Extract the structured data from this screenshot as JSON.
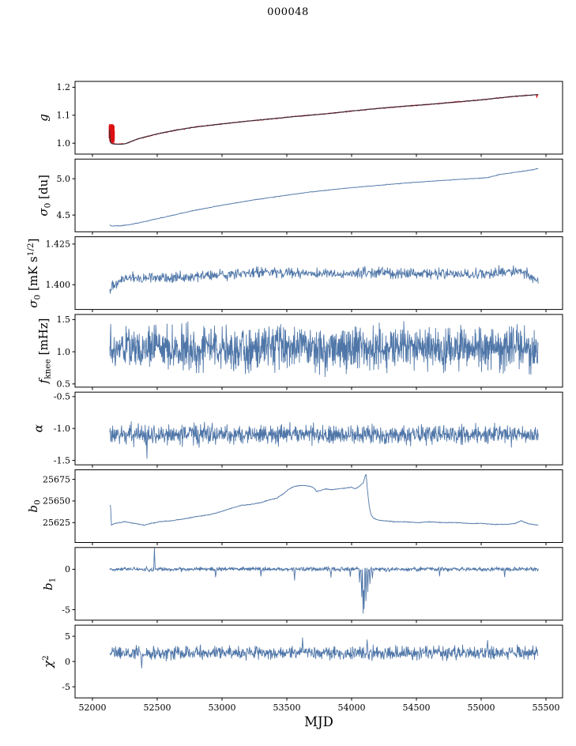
{
  "title": "000048",
  "chart_data": {
    "type": "line",
    "xlabel": "MJD",
    "xlim": [
      51866,
      55628
    ],
    "x_data_range": [
      52134,
      55440
    ],
    "x_ticks": {
      "values": [
        52000,
        52500,
        53000,
        53500,
        54000,
        54500,
        55000,
        55500
      ],
      "labels": [
        "52000",
        "52500",
        "53000",
        "53500",
        "54000",
        "54500",
        "55000",
        "55500"
      ]
    },
    "colors": {
      "blue": "#4f76a8",
      "red": "#dc1010",
      "fit": "#2b2b3d",
      "axis": "#000000"
    },
    "subplots": [
      {
        "name": "g",
        "ylabel_parts": [
          {
            "t": "g",
            "it": true
          }
        ],
        "ylim": [
          0.961,
          1.221
        ],
        "yticks": {
          "values": [
            1.0,
            1.1,
            1.2
          ],
          "labels": [
            "1.0",
            "1.1",
            "1.2"
          ]
        },
        "series": [
          {
            "kind": "noisy",
            "color": "red",
            "amp": 0.003,
            "n": 1300,
            "trend_ref": 1,
            "cluster": {
              "x0": 52128,
              "x1": 52170,
              "ymin": 1.0,
              "ymax": 1.068,
              "n": 150
            },
            "spikes": [
              [
                55430,
                1.163
              ]
            ]
          },
          {
            "kind": "smooth",
            "color": "fit",
            "points": [
              [
                52132,
                1.048
              ],
              [
                52140,
                1.005
              ],
              [
                52170,
                0.997
              ],
              [
                52250,
                0.998
              ],
              [
                52350,
                1.015
              ],
              [
                52500,
                1.033
              ],
              [
                52650,
                1.047
              ],
              [
                52800,
                1.058
              ],
              [
                53000,
                1.069
              ],
              [
                53200,
                1.079
              ],
              [
                53400,
                1.088
              ],
              [
                53600,
                1.097
              ],
              [
                53800,
                1.105
              ],
              [
                54000,
                1.115
              ],
              [
                54200,
                1.124
              ],
              [
                54400,
                1.132
              ],
              [
                54600,
                1.139
              ],
              [
                54800,
                1.147
              ],
              [
                55000,
                1.155
              ],
              [
                55200,
                1.165
              ],
              [
                55300,
                1.169
              ],
              [
                55440,
                1.174
              ]
            ]
          }
        ]
      },
      {
        "name": "sigma0-du",
        "ylabel_parts": [
          {
            "t": "σ",
            "it": true
          },
          {
            "t": "0",
            "sub": true
          },
          {
            "t": " [du]"
          }
        ],
        "ylim": [
          4.27,
          5.27
        ],
        "yticks": {
          "values": [
            4.5,
            5.0
          ],
          "labels": [
            "4.5",
            "5.0"
          ]
        },
        "series": [
          {
            "kind": "noisy",
            "color": "blue",
            "amp": 0.007,
            "n": 900,
            "trend": [
              [
                52134,
                4.365
              ],
              [
                52145,
                4.35
              ],
              [
                52200,
                4.352
              ],
              [
                52260,
                4.36
              ],
              [
                52350,
                4.39
              ],
              [
                52450,
                4.43
              ],
              [
                52550,
                4.47
              ],
              [
                52650,
                4.51
              ],
              [
                52750,
                4.55
              ],
              [
                52850,
                4.585
              ],
              [
                52950,
                4.62
              ],
              [
                53050,
                4.65
              ],
              [
                53150,
                4.68
              ],
              [
                53250,
                4.71
              ],
              [
                53350,
                4.735
              ],
              [
                53450,
                4.76
              ],
              [
                53550,
                4.785
              ],
              [
                53650,
                4.81
              ],
              [
                53750,
                4.83
              ],
              [
                53850,
                4.85
              ],
              [
                53950,
                4.868
              ],
              [
                54050,
                4.885
              ],
              [
                54150,
                4.9
              ],
              [
                54250,
                4.915
              ],
              [
                54350,
                4.93
              ],
              [
                54450,
                4.945
              ],
              [
                54550,
                4.958
              ],
              [
                54650,
                4.97
              ],
              [
                54750,
                4.982
              ],
              [
                54850,
                4.993
              ],
              [
                54950,
                5.003
              ],
              [
                55050,
                5.015
              ],
              [
                55150,
                5.06
              ],
              [
                55250,
                5.085
              ],
              [
                55350,
                5.11
              ],
              [
                55440,
                5.14
              ]
            ]
          }
        ]
      },
      {
        "name": "sigma0-mks",
        "ylabel_parts": [
          {
            "t": "σ",
            "it": true
          },
          {
            "t": "0",
            "sub": true
          },
          {
            "t": " [mK s"
          },
          {
            "t": "1/2",
            "sup": true
          },
          {
            "t": "]"
          }
        ],
        "ylim": [
          1.3848,
          1.4295
        ],
        "yticks": {
          "values": [
            1.4,
            1.425
          ],
          "labels": [
            "1.400",
            "1.425"
          ]
        },
        "series": [
          {
            "kind": "noisy",
            "color": "blue",
            "amp": 0.0048,
            "n": 950,
            "trend": [
              [
                52134,
                1.398
              ],
              [
                52250,
                1.404
              ],
              [
                52400,
                1.4045
              ],
              [
                52700,
                1.405
              ],
              [
                53000,
                1.406
              ],
              [
                53300,
                1.4075
              ],
              [
                53600,
                1.407
              ],
              [
                53900,
                1.4065
              ],
              [
                54200,
                1.4075
              ],
              [
                54500,
                1.407
              ],
              [
                54800,
                1.4065
              ],
              [
                55100,
                1.407
              ],
              [
                55300,
                1.4085
              ],
              [
                55440,
                1.403
              ]
            ]
          }
        ]
      },
      {
        "name": "fknee",
        "ylabel_parts": [
          {
            "t": "f",
            "it": true
          },
          {
            "t": "knee",
            "sub": true
          },
          {
            "t": " [mHz]"
          }
        ],
        "ylim": [
          0.45,
          1.58
        ],
        "yticks": {
          "values": [
            0.5,
            1.0,
            1.5
          ],
          "labels": [
            "0.5",
            "1.0",
            "1.5"
          ]
        },
        "series": [
          {
            "kind": "noisy",
            "color": "blue",
            "base": 1.05,
            "amp": 0.48,
            "n": 1400
          }
        ]
      },
      {
        "name": "alpha",
        "ylabel_parts": [
          {
            "t": "α",
            "it": true
          }
        ],
        "ylim": [
          -1.57,
          -0.43
        ],
        "yticks": {
          "values": [
            -1.5,
            -1.0,
            -0.5
          ],
          "labels": [
            "-1.5",
            "-1.0",
            "-0.5"
          ]
        },
        "series": [
          {
            "kind": "noisy",
            "color": "blue",
            "base": -1.1,
            "amp": 0.22,
            "n": 1200,
            "spikes": [
              [
                52420,
                -1.47
              ]
            ]
          }
        ]
      },
      {
        "name": "b0",
        "ylabel_parts": [
          {
            "t": "b",
            "it": true
          },
          {
            "t": "0",
            "sub": true
          }
        ],
        "ylim": [
          25602,
          25686
        ],
        "yticks": {
          "values": [
            25625,
            25650,
            25675
          ],
          "labels": [
            "25625",
            "25650",
            "25675"
          ]
        },
        "series": [
          {
            "kind": "noisy",
            "color": "blue",
            "amp": 0.7,
            "n": 1000,
            "trend": [
              [
                52134,
                25645
              ],
              [
                52140,
                25645
              ],
              [
                52146,
                25622
              ],
              [
                52170,
                25624
              ],
              [
                52250,
                25626
              ],
              [
                52330,
                25624
              ],
              [
                52400,
                25622
              ],
              [
                52450,
                25624
              ],
              [
                52520,
                25626
              ],
              [
                52600,
                25627
              ],
              [
                52700,
                25629
              ],
              [
                52800,
                25632
              ],
              [
                52900,
                25634
              ],
              [
                53000,
                25638
              ],
              [
                53080,
                25642
              ],
              [
                53150,
                25645
              ],
              [
                53220,
                25646
              ],
              [
                53300,
                25648
              ],
              [
                53360,
                25651
              ],
              [
                53420,
                25653
              ],
              [
                53470,
                25658
              ],
              [
                53520,
                25664
              ],
              [
                53560,
                25667
              ],
              [
                53620,
                25668
              ],
              [
                53680,
                25667
              ],
              [
                53710,
                25665
              ],
              [
                53730,
                25661
              ],
              [
                53760,
                25662
              ],
              [
                53800,
                25664
              ],
              [
                53850,
                25663
              ],
              [
                53900,
                25664
              ],
              [
                53960,
                25665
              ],
              [
                54000,
                25666
              ],
              [
                54030,
                25664
              ],
              [
                54060,
                25667
              ],
              [
                54090,
                25671
              ],
              [
                54105,
                25679
              ],
              [
                54112,
                25682
              ],
              [
                54120,
                25666
              ],
              [
                54135,
                25645
              ],
              [
                54150,
                25634
              ],
              [
                54170,
                25630
              ],
              [
                54200,
                25628
              ],
              [
                54260,
                25627
              ],
              [
                54330,
                25626
              ],
              [
                54400,
                25626
              ],
              [
                54500,
                25625
              ],
              [
                54600,
                25626
              ],
              [
                54700,
                25625
              ],
              [
                54800,
                25625
              ],
              [
                54900,
                25624
              ],
              [
                55000,
                25624
              ],
              [
                55100,
                25623
              ],
              [
                55200,
                25623
              ],
              [
                55260,
                25624
              ],
              [
                55310,
                25627
              ],
              [
                55360,
                25624
              ],
              [
                55440,
                25622
              ]
            ]
          }
        ]
      },
      {
        "name": "b1",
        "ylabel_parts": [
          {
            "t": "b",
            "it": true
          },
          {
            "t": "1",
            "sub": true
          }
        ],
        "ylim": [
          -6.3,
          2.7
        ],
        "yticks": {
          "values": [
            -5,
            0
          ],
          "labels": [
            "-5",
            "0"
          ]
        },
        "series": [
          {
            "kind": "noisy",
            "color": "blue",
            "base": 0.02,
            "amp": 0.38,
            "n": 1200,
            "spikes": [
              [
                52480,
                2.6
              ],
              [
                52950,
                -0.95
              ],
              [
                53300,
                -0.85
              ],
              [
                53560,
                -1.35
              ],
              [
                53840,
                -1.0
              ],
              [
                53990,
                -0.9
              ],
              [
                54060,
                -1.6
              ],
              [
                54078,
                -3.4
              ],
              [
                54088,
                -5.45
              ],
              [
                54098,
                -4.9
              ],
              [
                54112,
                -3.9
              ],
              [
                54126,
                -2.8
              ],
              [
                54142,
                -1.8
              ],
              [
                54160,
                -1.1
              ],
              [
                54680,
                -0.85
              ],
              [
                55180,
                -0.95
              ]
            ]
          }
        ]
      },
      {
        "name": "chi2",
        "ylabel_parts": [
          {
            "t": "χ",
            "it": true
          },
          {
            "t": "2",
            "sup": true
          }
        ],
        "ylim": [
          -7.2,
          7.2
        ],
        "yticks": {
          "values": [
            -5,
            0,
            5
          ],
          "labels": [
            "-5",
            "0",
            "5"
          ]
        },
        "series": [
          {
            "kind": "noisy",
            "color": "blue",
            "base": 1.7,
            "amp": 1.9,
            "n": 1050,
            "spikes": [
              [
                52380,
                -1.3
              ],
              [
                53620,
                4.7
              ],
              [
                54120,
                4.3
              ],
              [
                55050,
                4.2
              ]
            ]
          }
        ]
      }
    ]
  }
}
